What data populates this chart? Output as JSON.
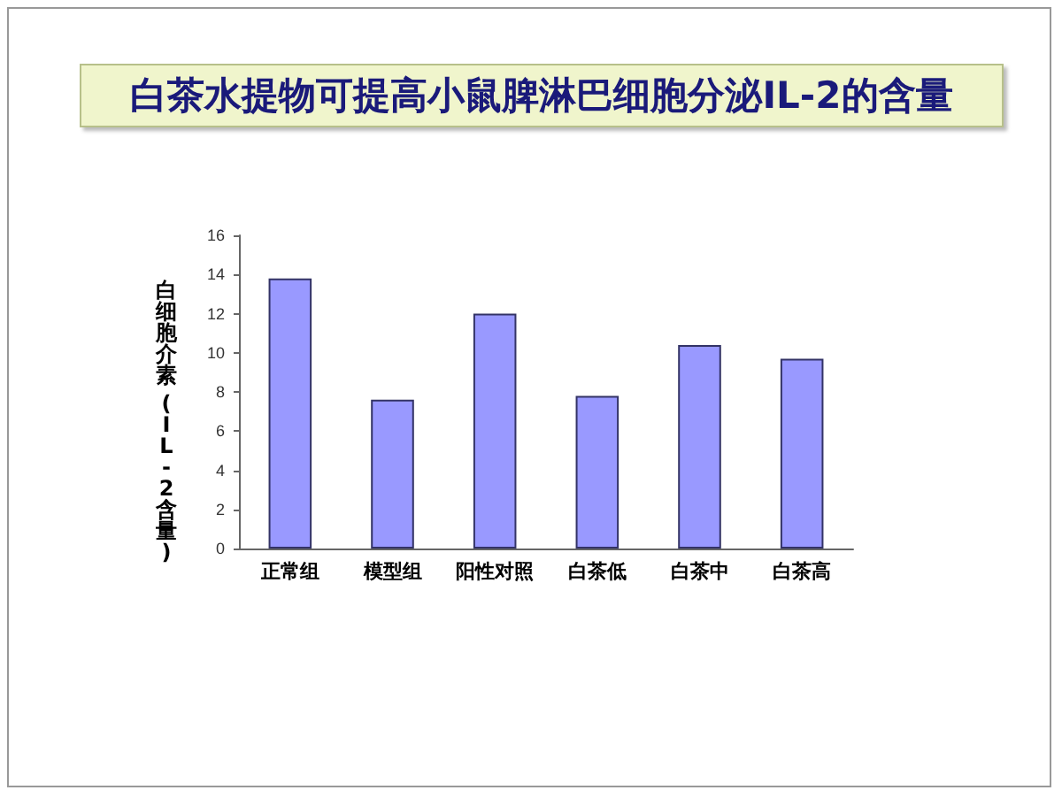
{
  "chart_data": {
    "type": "bar",
    "title": "白茶水提物可提高小鼠脾淋巴细胞分泌IL-2的含量",
    "ylabel": "白细胞介素 (IL-2含量)",
    "categories": [
      "正常组",
      "模型组",
      "阳性对照",
      "白茶低",
      "白茶中",
      "白茶高"
    ],
    "values": [
      13.8,
      7.6,
      12.0,
      7.8,
      10.4,
      9.7
    ],
    "color": "#9999ff",
    "ylim": [
      0,
      16
    ],
    "yticks": [
      0,
      2,
      4,
      6,
      8,
      10,
      12,
      14,
      16
    ],
    "grid": false
  }
}
